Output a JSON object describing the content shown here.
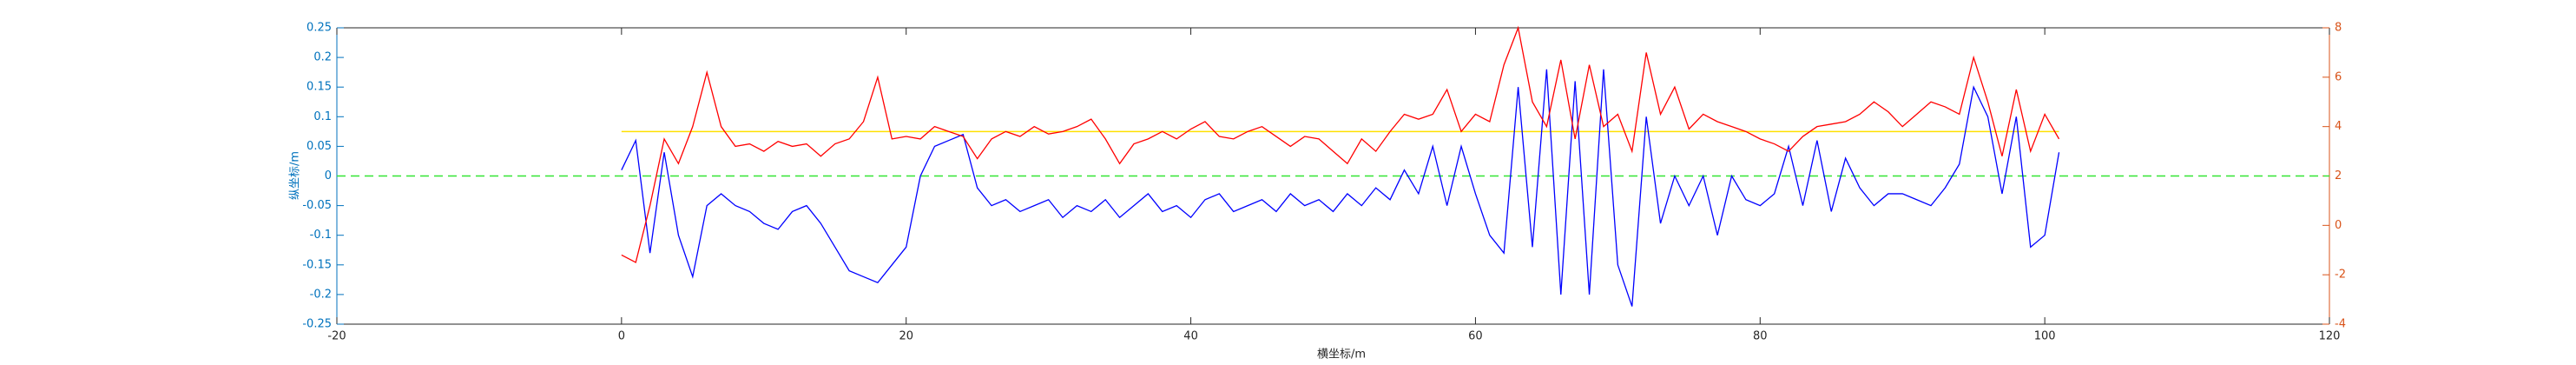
{
  "chart_data": {
    "type": "line",
    "xlabel": "横坐标/m",
    "ylabel": "纵坐标/m",
    "x": [
      0,
      1,
      2,
      3,
      4,
      5,
      6,
      7,
      8,
      9,
      10,
      11,
      12,
      13,
      14,
      15,
      16,
      17,
      18,
      19,
      20,
      21,
      22,
      23,
      24,
      25,
      26,
      27,
      28,
      29,
      30,
      31,
      32,
      33,
      34,
      35,
      36,
      37,
      38,
      39,
      40,
      41,
      42,
      43,
      44,
      45,
      46,
      47,
      48,
      49,
      50,
      51,
      52,
      53,
      54,
      55,
      56,
      57,
      58,
      59,
      60,
      61,
      62,
      63,
      64,
      65,
      66,
      67,
      68,
      69,
      70,
      71,
      72,
      73,
      74,
      75,
      76,
      77,
      78,
      79,
      80,
      81,
      82,
      83,
      84,
      85,
      86,
      87,
      88,
      89,
      90,
      91,
      92,
      93,
      94,
      95,
      96,
      97,
      98,
      99,
      100,
      101
    ],
    "series": [
      {
        "color": "#0000ff",
        "axis": "y",
        "values": [
          0.01,
          0.06,
          -0.13,
          0.04,
          -0.1,
          -0.17,
          -0.05,
          -0.03,
          -0.05,
          -0.06,
          -0.08,
          -0.09,
          -0.06,
          -0.05,
          -0.08,
          -0.12,
          -0.16,
          -0.17,
          -0.18,
          -0.15,
          -0.12,
          0.0,
          0.05,
          0.06,
          0.07,
          -0.02,
          -0.05,
          -0.04,
          -0.06,
          -0.05,
          -0.04,
          -0.07,
          -0.05,
          -0.06,
          -0.04,
          -0.07,
          -0.05,
          -0.03,
          -0.06,
          -0.05,
          -0.07,
          -0.04,
          -0.03,
          -0.06,
          -0.05,
          -0.04,
          -0.06,
          -0.03,
          -0.05,
          -0.04,
          -0.06,
          -0.03,
          -0.05,
          -0.02,
          -0.04,
          0.01,
          -0.03,
          0.05,
          -0.05,
          0.05,
          -0.03,
          -0.1,
          -0.13,
          0.15,
          -0.12,
          0.18,
          -0.2,
          0.16,
          -0.2,
          0.18,
          -0.15,
          -0.22,
          0.1,
          -0.08,
          0.0,
          -0.05,
          0.0,
          -0.1,
          0.0,
          -0.04,
          -0.05,
          -0.03,
          0.05,
          -0.05,
          0.06,
          -0.06,
          0.03,
          -0.02,
          -0.05,
          -0.03,
          -0.03,
          -0.04,
          -0.05,
          -0.02,
          0.02,
          0.15,
          0.1,
          -0.03,
          0.1,
          -0.12,
          -0.1,
          0.04
        ]
      },
      {
        "color": "#ff0000",
        "axis": "y2",
        "values": [
          -1.2,
          -1.5,
          0.8,
          3.5,
          2.5,
          4,
          6.2,
          4,
          3.2,
          3.3,
          3,
          3.4,
          3.2,
          3.3,
          2.8,
          3.3,
          3.5,
          4.2,
          6,
          3.5,
          3.6,
          3.5,
          4,
          3.8,
          3.6,
          2.7,
          3.5,
          3.8,
          3.6,
          4,
          3.7,
          3.8,
          4,
          4.3,
          3.5,
          2.5,
          3.3,
          3.5,
          3.8,
          3.5,
          3.9,
          4.2,
          3.6,
          3.5,
          3.8,
          4,
          3.6,
          3.2,
          3.6,
          3.5,
          3,
          2.5,
          3.5,
          3,
          3.8,
          4.5,
          4.3,
          4.5,
          5.5,
          3.8,
          4.5,
          4.2,
          6.5,
          8,
          5,
          4,
          6.7,
          3.5,
          6.5,
          4,
          4.5,
          3,
          7,
          4.5,
          5.6,
          3.9,
          4.5,
          4.2,
          4,
          3.8,
          3.5,
          3.3,
          3,
          3.6,
          4,
          4.1,
          4.2,
          4.5,
          5,
          4.6,
          4,
          4.5,
          5,
          4.8,
          4.5,
          6.8,
          5,
          2.8,
          5.5,
          3,
          4.5,
          3.5
        ]
      }
    ],
    "reference_lines": [
      {
        "value": 3.8,
        "axis": "y2",
        "color": "#ffe000",
        "span": "data",
        "dashed": false
      },
      {
        "value": 0,
        "axis": "y",
        "color": "#33e633",
        "span": "full",
        "dashed": true
      }
    ],
    "xlim": [
      -20,
      120
    ],
    "xticks": [
      -20,
      0,
      20,
      40,
      60,
      80,
      100,
      120
    ],
    "ylim": [
      -0.25,
      0.25
    ],
    "yticks": [
      -0.25,
      -0.2,
      -0.15,
      -0.1,
      -0.05,
      0,
      0.05,
      0.1,
      0.15,
      0.2,
      0.25
    ],
    "y2lim": [
      -4,
      8
    ],
    "y2ticks": [
      -4,
      -2,
      0,
      2,
      4,
      6,
      8
    ],
    "ycolor": "#0072bd",
    "y2color": "#d95319"
  }
}
